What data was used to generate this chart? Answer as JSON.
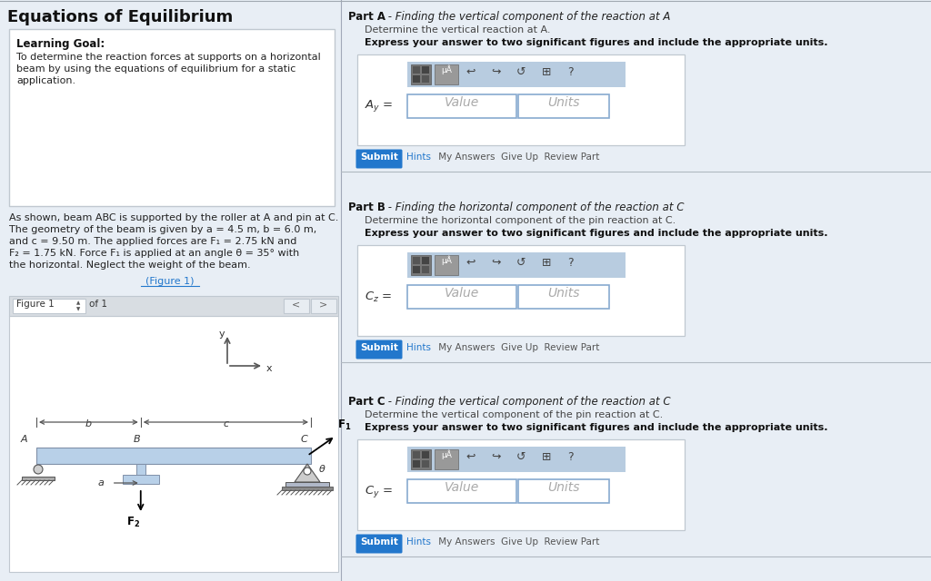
{
  "bg_color": "#e8eef5",
  "white": "#ffffff",
  "border_color": "#c0c8d0",
  "figure_bg": "#dde6ef",
  "toolbar_bg": "#b8cce0",
  "submit_color": "#2277cc",
  "link_color": "#2277cc",
  "input_border": "#88aad0",
  "title": "Equations of Equilibrium",
  "lg_title": "Learning Goal:",
  "lg_body": "To determine the reaction forces at supports on a horizontal\nbeam by using the equations of equilibrium for a static\napplication.",
  "prob_lines": [
    "As shown, beam ABC is supported by the roller at A and pin at C.",
    "The geometry of the beam is given by a = 4.5 m, b = 6.0 m,",
    "and c = 9.50 m. The applied forces are F₁ = 2.75 kN and",
    "F₂ = 1.75 kN. Force F₁ is applied at an angle θ = 35° with",
    "the horizontal. Neglect the weight of the beam."
  ],
  "fig_link": "(Figure 1)",
  "fig_label": "Figure 1",
  "of1": "of 1",
  "parts": [
    {
      "letter": "A",
      "title": "Finding the vertical component of the reaction at A",
      "sub": "Determine the vertical reaction at A.",
      "bold": "Express your answer to two significant figures and include the appropriate units.",
      "var": "A_y"
    },
    {
      "letter": "B",
      "title": "Finding the horizontal component of the reaction at C",
      "sub": "Determine the horizontal component of the pin reaction at C.",
      "bold": "Express your answer to two significant figures and include the appropriate units.",
      "var": "C_z"
    },
    {
      "letter": "C",
      "title": "Finding the vertical component of the reaction at C",
      "sub": "Determine the vertical component of the pin reaction at C.",
      "bold": "Express your answer to two significant figures and include the appropriate units.",
      "var": "C_y"
    }
  ]
}
